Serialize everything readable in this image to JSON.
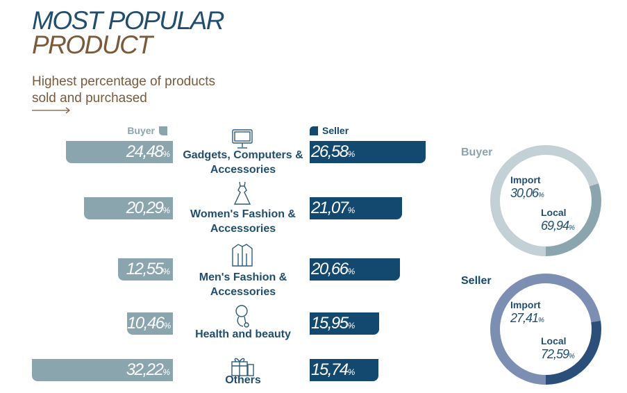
{
  "title": {
    "line1": "MOST POPULAR",
    "line2": "PRODUCT"
  },
  "subtitle": "Highest percentage of products sold and purchased",
  "legend": {
    "buyer": "Buyer",
    "seller": "Seller"
  },
  "colors": {
    "buyer": "#8ba5ae",
    "seller": "#14496f",
    "title": "#1f4e6e",
    "accent": "#7a5a3a"
  },
  "chart_data": [
    {
      "type": "bar",
      "orientation": "horizontal-butterfly",
      "categories": [
        "Gadgets, Computers & Accessories",
        "Women's Fashion & Accessories",
        "Men's Fashion & Accessories",
        "Health and beauty",
        "Others"
      ],
      "category_icons": [
        "monitor-icon",
        "dress-icon",
        "jacket-icon",
        "beauty-icon",
        "gift-icon"
      ],
      "series": [
        {
          "name": "Buyer",
          "values": [
            24.48,
            20.29,
            12.55,
            10.46,
            32.22
          ],
          "labels": [
            "24,48",
            "20,29",
            "12,55",
            "10,46",
            "32,22"
          ]
        },
        {
          "name": "Seller",
          "values": [
            26.58,
            21.07,
            20.66,
            15.95,
            15.74
          ],
          "labels": [
            "26,58",
            "21,07",
            "20,66",
            "15,95",
            "15,74"
          ]
        }
      ],
      "unit": "%"
    },
    {
      "type": "pie",
      "title": "Buyer",
      "slices": [
        {
          "label": "Import",
          "value": 30.06,
          "text": "30,06"
        },
        {
          "label": "Local",
          "value": 69.94,
          "text": "69,94"
        }
      ],
      "colors": [
        "#8ba5ae",
        "#c3d0d6"
      ]
    },
    {
      "type": "pie",
      "title": "Seller",
      "slices": [
        {
          "label": "Import",
          "value": 27.41,
          "text": "27,41"
        },
        {
          "label": "Local",
          "value": 72.59,
          "text": "72,59"
        }
      ],
      "colors": [
        "#2c4f7a",
        "#7c8fb2"
      ]
    }
  ]
}
